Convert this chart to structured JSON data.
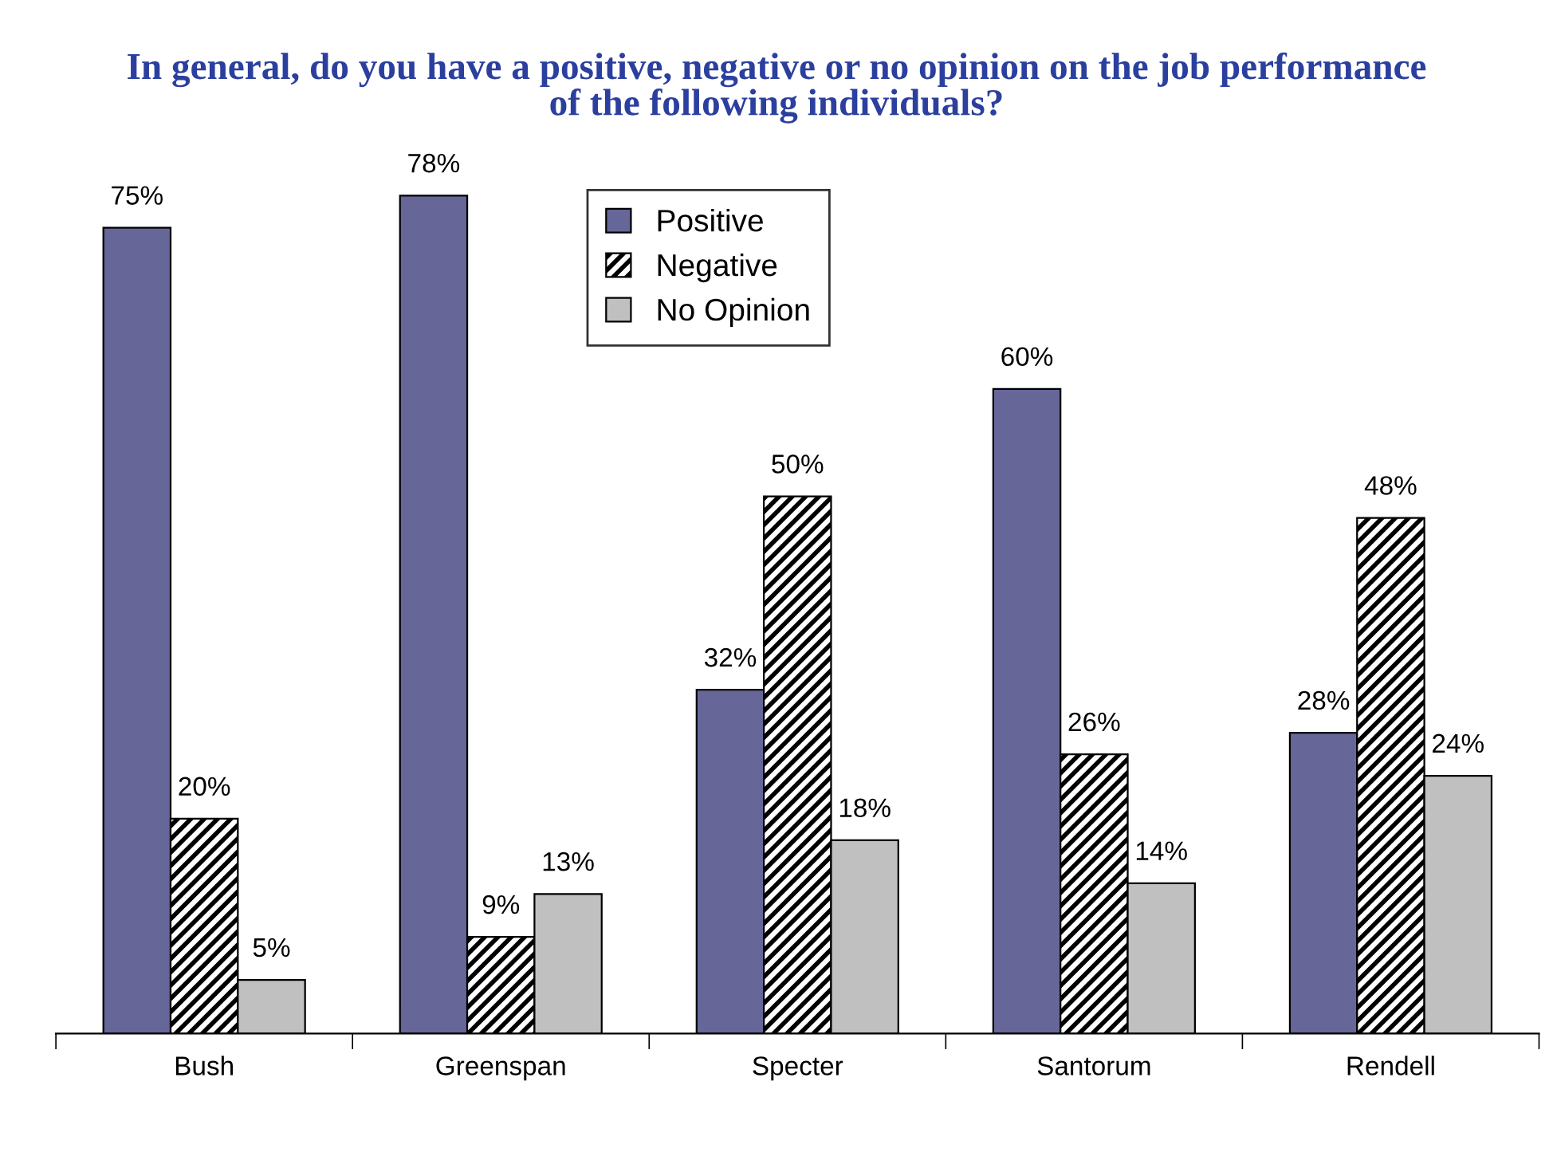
{
  "chart_data": {
    "type": "bar",
    "title": "In general, do you have a positive, negative or no opinion on the job performance\nof the following individuals?",
    "categories": [
      "Bush",
      "Greenspan",
      "Specter",
      "Santorum",
      "Rendell"
    ],
    "series": [
      {
        "name": "Positive",
        "color": "#666699",
        "values": [
          75,
          78,
          32,
          60,
          28
        ],
        "value_labels": [
          "75%",
          "78%",
          "32%",
          "60%",
          "28%"
        ]
      },
      {
        "name": "Negative",
        "color": "#000000",
        "values": [
          20,
          9,
          50,
          26,
          48
        ],
        "value_labels": [
          "20%",
          "9%",
          "50%",
          "26%",
          "48%"
        ]
      },
      {
        "name": "No Opinion",
        "color": "#c0c0c0",
        "values": [
          5,
          13,
          18,
          14,
          24
        ],
        "value_labels": [
          "5%",
          "13%",
          "18%",
          "14%",
          "24%"
        ]
      }
    ],
    "legend": "top",
    "grid": false
  }
}
